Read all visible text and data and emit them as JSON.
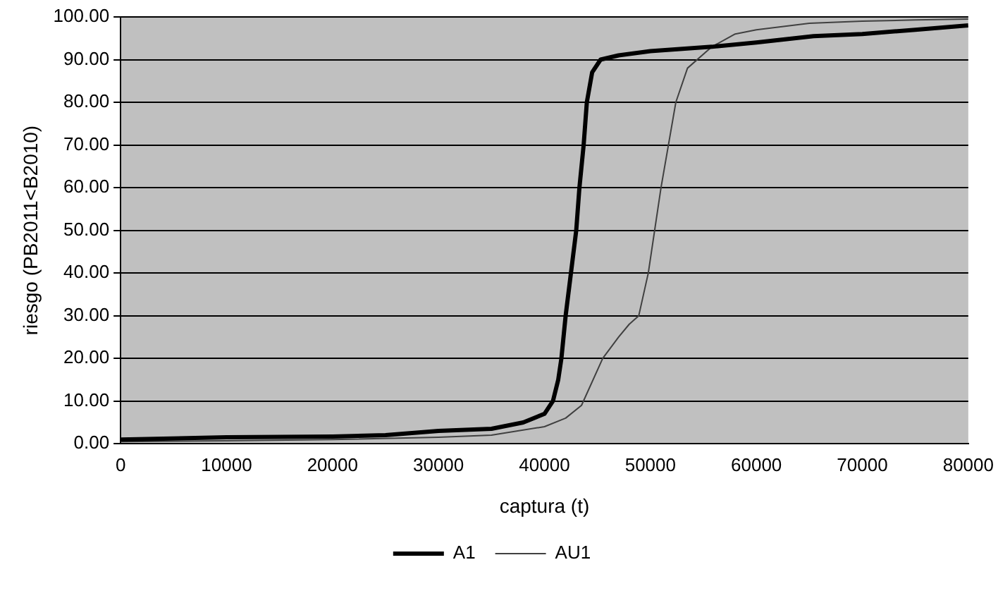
{
  "chart_data": {
    "type": "line",
    "xlabel": "captura (t)",
    "ylabel": "riesgo (PB2011<B2010)",
    "xlim": [
      0,
      80000
    ],
    "xticks": [
      0,
      10000,
      20000,
      30000,
      40000,
      50000,
      60000,
      70000,
      80000
    ],
    "ylim": [
      0,
      100
    ],
    "yticks": [
      {
        "value": 0,
        "label": "0.00"
      },
      {
        "value": 10,
        "label": "10.00"
      },
      {
        "value": 20,
        "label": "20.00"
      },
      {
        "value": 30,
        "label": "30.00"
      },
      {
        "value": 40,
        "label": "40.00"
      },
      {
        "value": 50,
        "label": "50.00"
      },
      {
        "value": 60,
        "label": "60.00"
      },
      {
        "value": 70,
        "label": "70.00"
      },
      {
        "value": 80,
        "label": "80.00"
      },
      {
        "value": 90,
        "label": "90.00"
      },
      {
        "value": 100,
        "label": "100.00"
      }
    ],
    "grid": "y",
    "legend": "bottom",
    "marker": "none",
    "line_style": "solid",
    "series": [
      {
        "name": "A1",
        "color": "#000000",
        "x": [
          0,
          10000,
          20000,
          25000,
          30000,
          35000,
          38000,
          40000,
          40800,
          41300,
          41600,
          42000,
          42500,
          43000,
          43300,
          43700,
          44000,
          44500,
          45300,
          47000,
          50000,
          55800,
          60000,
          65400,
          70000,
          75000,
          80000
        ],
        "values": [
          1,
          1.5,
          1.7,
          2,
          3,
          3.5,
          5,
          7,
          10,
          15,
          20,
          30,
          40,
          50,
          60,
          70,
          80,
          87,
          90,
          91,
          92,
          93,
          94,
          95.5,
          96,
          97,
          98
        ]
      },
      {
        "name": "AU1",
        "color": "#404040",
        "x": [
          0,
          10000,
          20000,
          30000,
          35000,
          40000,
          42000,
          43500,
          45500,
          47000,
          48000,
          48900,
          49800,
          50400,
          51000,
          51700,
          52400,
          53500,
          55800,
          58000,
          60000,
          65000,
          70000,
          75000,
          80000
        ],
        "values": [
          0.5,
          0.7,
          1,
          1.5,
          2,
          4,
          6,
          9,
          20,
          25,
          28,
          30,
          40,
          50,
          60,
          70,
          80,
          88,
          93,
          96,
          97,
          98.5,
          99,
          99.3,
          99.5
        ]
      }
    ]
  }
}
